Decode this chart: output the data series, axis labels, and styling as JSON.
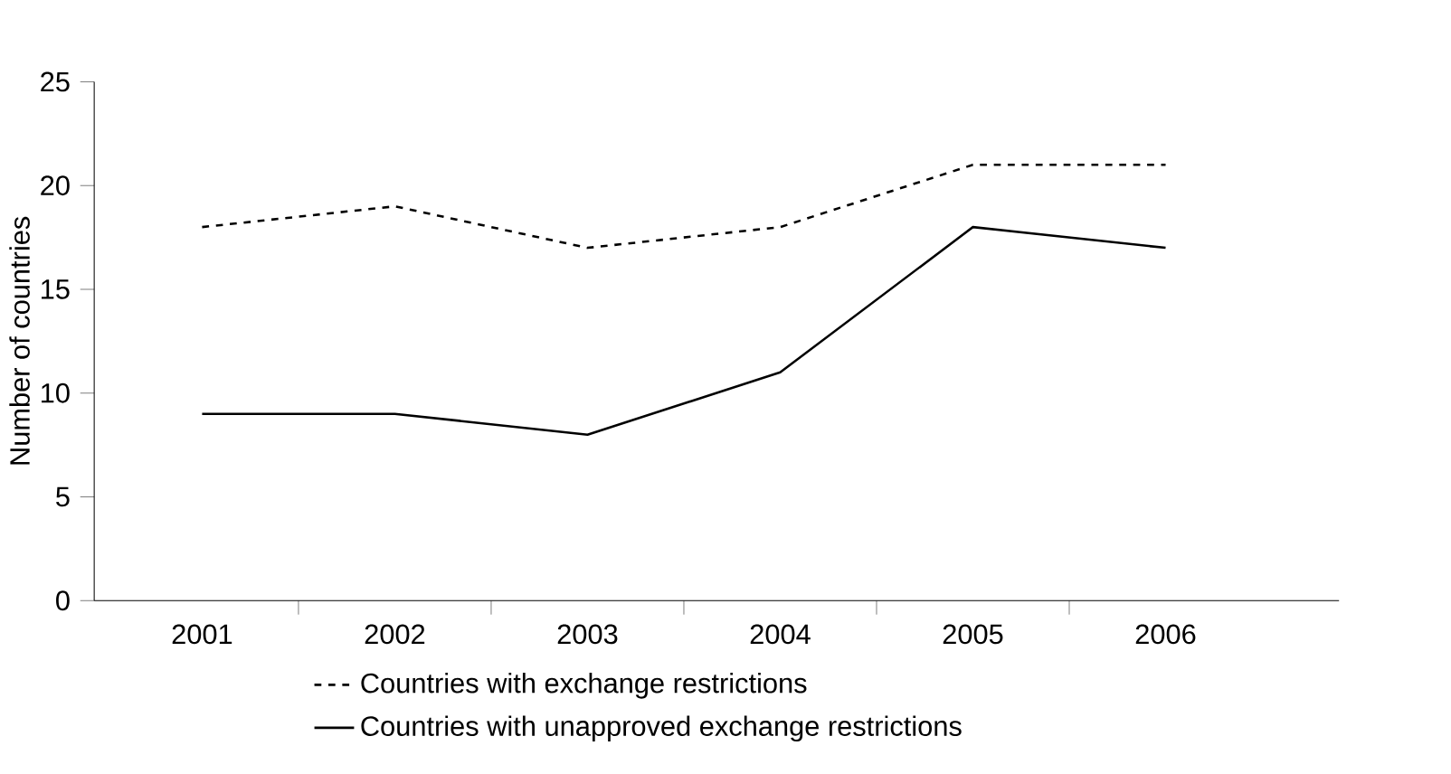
{
  "chart_data": {
    "type": "line",
    "ylabel": "Number of countries",
    "categories": [
      "2001",
      "2002",
      "2003",
      "2004",
      "2005",
      "2006"
    ],
    "series": [
      {
        "name": "Countries with exchange restrictions",
        "color": "#000000",
        "line_style": "dashed",
        "values": [
          18,
          19,
          17,
          18,
          21,
          21
        ]
      },
      {
        "name": "Countries with unapproved exchange restrictions",
        "color": "#000000",
        "line_style": "solid",
        "values": [
          9,
          9,
          8,
          11,
          18,
          17
        ]
      }
    ],
    "ylim": [
      0,
      25
    ],
    "yticks": [
      0,
      5,
      10,
      15,
      20,
      25
    ],
    "grid": false,
    "legend": "bottom",
    "marker": "none"
  }
}
